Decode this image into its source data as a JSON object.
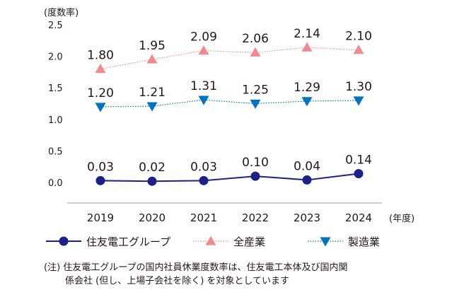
{
  "chart_data": {
    "type": "line",
    "ylabel": "(度数率)",
    "xlabel": "(年度)",
    "x": [
      "2019",
      "2020",
      "2021",
      "2022",
      "2023",
      "2024"
    ],
    "ylim": [
      0.0,
      2.5
    ],
    "yticks": [
      "2.5",
      "2.0",
      "1.5",
      "1.0",
      "0.5",
      "0.0"
    ],
    "grid": false,
    "legend_position": "bottom",
    "series": [
      {
        "name": "住友電工グループ",
        "values": [
          0.03,
          0.02,
          0.03,
          0.1,
          0.04,
          0.14
        ],
        "labels": [
          "0.03",
          "0.02",
          "0.03",
          "0.10",
          "0.04",
          "0.14"
        ],
        "color": "#1d2088",
        "marker": "circle",
        "line": "solid"
      },
      {
        "name": "全産業",
        "values": [
          1.8,
          1.95,
          2.09,
          2.06,
          2.14,
          2.1
        ],
        "labels": [
          "1.80",
          "1.95",
          "2.09",
          "2.06",
          "2.14",
          "2.10"
        ],
        "color": "#f08a8f",
        "marker": "triangle-up",
        "line": "dotted"
      },
      {
        "name": "製造業",
        "values": [
          1.2,
          1.21,
          1.31,
          1.25,
          1.29,
          1.3
        ],
        "labels": [
          "1.20",
          "1.21",
          "1.31",
          "1.25",
          "1.29",
          "1.30"
        ],
        "color": "#0073c1",
        "marker": "triangle-down",
        "line": "dotted"
      }
    ]
  },
  "note": {
    "line1": "(注) 住友電工グループの国内社員休業度数率は、住友電工本体及び国内関",
    "line2": "係会社 (但し、上場子会社を除く) を対象としています"
  }
}
